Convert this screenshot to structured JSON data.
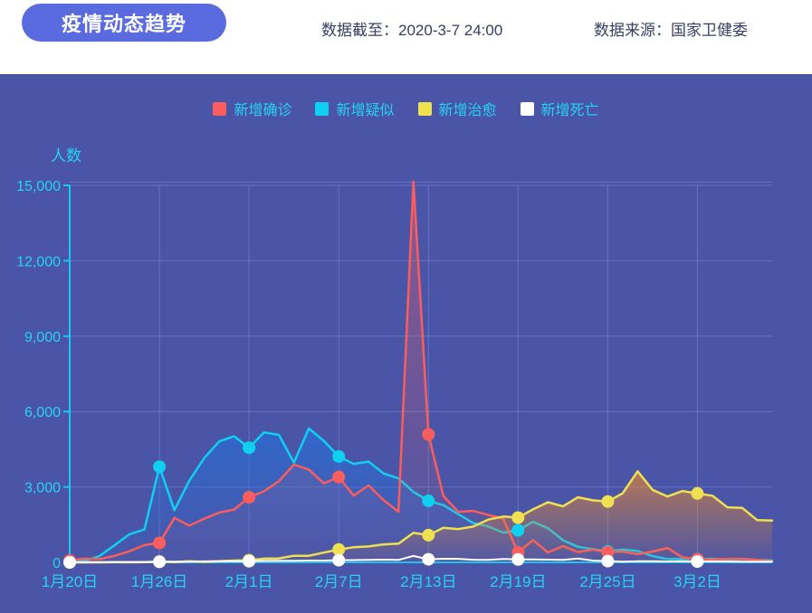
{
  "header": {
    "title": "疫情动态趋势",
    "data_cutoff_label": "数据截至：2020-3-7 24:00",
    "data_source_label": "数据来源：国家卫健委"
  },
  "colors": {
    "panel_bg": "#4a55a8",
    "header_bg": "#ffffff",
    "pill_bg": "#5a6be0",
    "pill_text": "#ffffff",
    "header_text": "#363f63",
    "axis_text": "#25d3f2",
    "axis_line": "#19c8ee",
    "grid_line": "rgba(145,162,230,0.38)"
  },
  "chart_data": {
    "type": "line",
    "title": "疫情动态趋势",
    "xlabel": "",
    "ylabel": "人数",
    "ylim": [
      0,
      15000
    ],
    "grid": true,
    "legend_position": "top",
    "y_tick_values": [
      0,
      3000,
      6000,
      9000,
      12000,
      15000
    ],
    "y_tick_labels": [
      "0",
      "3,000",
      "6,000",
      "9,000",
      "12,000",
      "15,000"
    ],
    "x_ticks": [
      {
        "day": 0,
        "label": "1月20日"
      },
      {
        "day": 6,
        "label": "1月26日"
      },
      {
        "day": 12,
        "label": "2月1日"
      },
      {
        "day": 18,
        "label": "2月7日"
      },
      {
        "day": 24,
        "label": "2月13日"
      },
      {
        "day": 30,
        "label": "2月19日"
      },
      {
        "day": 36,
        "label": "2月25日"
      },
      {
        "day": 42,
        "label": "3月2日"
      }
    ],
    "marker_days": [
      0,
      6,
      12,
      18,
      24,
      30,
      36,
      42
    ],
    "dates": [
      "1月20日",
      "1月21日",
      "1月22日",
      "1月23日",
      "1月24日",
      "1月25日",
      "1月26日",
      "1月27日",
      "1月28日",
      "1月29日",
      "1月30日",
      "1月31日",
      "2月1日",
      "2月2日",
      "2月3日",
      "2月4日",
      "2月5日",
      "2月6日",
      "2月7日",
      "2月8日",
      "2月9日",
      "2月10日",
      "2月11日",
      "2月12日",
      "2月13日",
      "2月14日",
      "2月15日",
      "2月16日",
      "2月17日",
      "2月18日",
      "2月19日",
      "2月20日",
      "2月21日",
      "2月22日",
      "2月23日",
      "2月24日",
      "2月25日",
      "2月26日",
      "2月27日",
      "2月28日",
      "2月29日",
      "3月1日",
      "3月2日",
      "3月3日",
      "3月4日",
      "3月5日",
      "3月6日",
      "3月7日"
    ],
    "series": [
      {
        "key": "confirmed",
        "name": "新增确诊",
        "color": "#fa5d5d",
        "fill": "#fa5d5d",
        "fill_opacity": 0.38,
        "values": [
          77,
          149,
          131,
          259,
          444,
          688,
          769,
          1771,
          1459,
          1737,
          1982,
          2102,
          2590,
          2829,
          3235,
          3887,
          3694,
          3143,
          3399,
          2656,
          3062,
          2478,
          2015,
          15152,
          5090,
          2641,
          2009,
          2048,
          1886,
          1749,
          394,
          889,
          397,
          648,
          409,
          508,
          406,
          433,
          327,
          427,
          573,
          202,
          125,
          119,
          139,
          143,
          99,
          44
        ]
      },
      {
        "key": "suspected",
        "name": "新增疑似",
        "color": "#0fd0ef",
        "fill": "#2273dd",
        "fill_opacity": 0.62,
        "values": [
          27,
          53,
          257,
          680,
          1118,
          1309,
          3806,
          2077,
          3248,
          4148,
          4812,
          5019,
          4562,
          5173,
          5072,
          3971,
          5328,
          4833,
          4214,
          3916,
          4008,
          3536,
          3342,
          2807,
          2450,
          2277,
          1918,
          1563,
          1432,
          1185,
          1277,
          1614,
          1361,
          882,
          620,
          530,
          439,
          508,
          452,
          248,
          132,
          141,
          129,
          143,
          102,
          128,
          99,
          84
        ]
      },
      {
        "key": "cured",
        "name": "新增治愈",
        "color": "#eee04e",
        "fill": "#e8882e",
        "fill_opacity": 0.68,
        "values": [
          0,
          0,
          0,
          6,
          3,
          11,
          24,
          9,
          43,
          21,
          47,
          72,
          85,
          147,
          157,
          262,
          261,
          387,
          510,
          600,
          632,
          716,
          744,
          1171,
          1081,
          1373,
          1323,
          1425,
          1701,
          1824,
          1779,
          2109,
          2393,
          2230,
          2589,
          2467,
          2422,
          2750,
          3622,
          2885,
          2623,
          2837,
          2742,
          2652,
          2189,
          2164,
          1681,
          1661
        ]
      },
      {
        "key": "deaths",
        "name": "新增死亡",
        "color": "#ffffff",
        "fill": "none",
        "fill_opacity": 0,
        "values": [
          0,
          3,
          8,
          8,
          16,
          15,
          24,
          26,
          26,
          38,
          43,
          46,
          45,
          57,
          64,
          65,
          73,
          73,
          86,
          89,
          97,
          108,
          97,
          254,
          121,
          143,
          142,
          105,
          98,
          136,
          114,
          118,
          109,
          97,
          150,
          71,
          52,
          29,
          44,
          47,
          35,
          42,
          31,
          38,
          31,
          30,
          28,
          27
        ]
      }
    ]
  }
}
